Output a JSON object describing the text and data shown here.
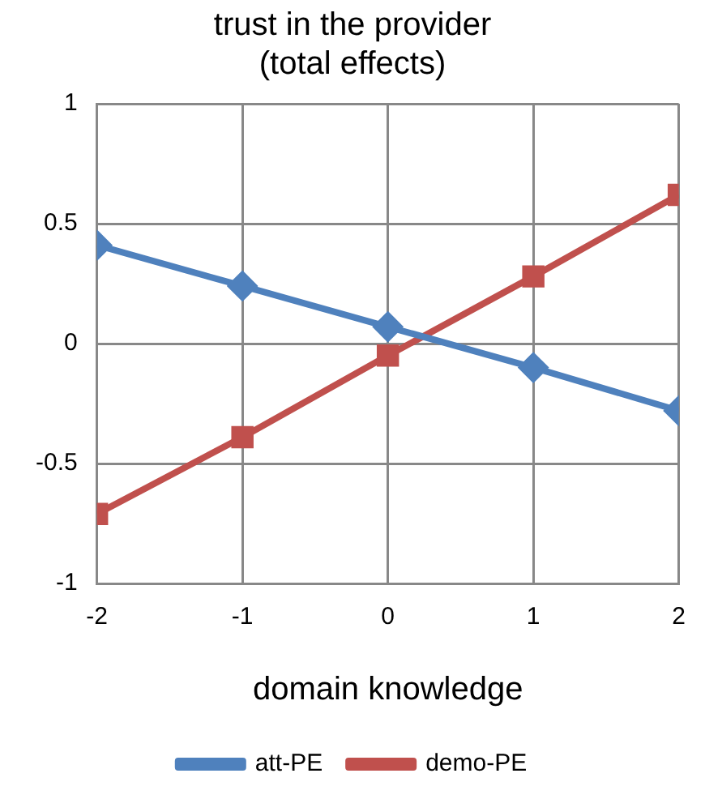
{
  "chart_data": {
    "type": "line",
    "title": "trust in the provider\n(total effects)",
    "xlabel": "domain knowledge",
    "x": [
      -2,
      -1,
      0,
      1,
      2
    ],
    "series": [
      {
        "name": "att-PE",
        "color": "#4f81bd",
        "marker": "diamond",
        "values": [
          0.41,
          0.24,
          0.07,
          -0.1,
          -0.28
        ]
      },
      {
        "name": "demo-PE",
        "color": "#c0504d",
        "marker": "square",
        "values": [
          -0.71,
          -0.39,
          -0.05,
          0.28,
          0.62
        ]
      }
    ],
    "xlim": [
      -2,
      2
    ],
    "xticks": [
      -2,
      -1,
      0,
      1,
      2
    ],
    "ylim": [
      -1,
      1
    ],
    "yticks": [
      -1,
      -0.5,
      0,
      0.5,
      1
    ],
    "grid": true,
    "legend": "bottom",
    "line_style": "solid"
  }
}
